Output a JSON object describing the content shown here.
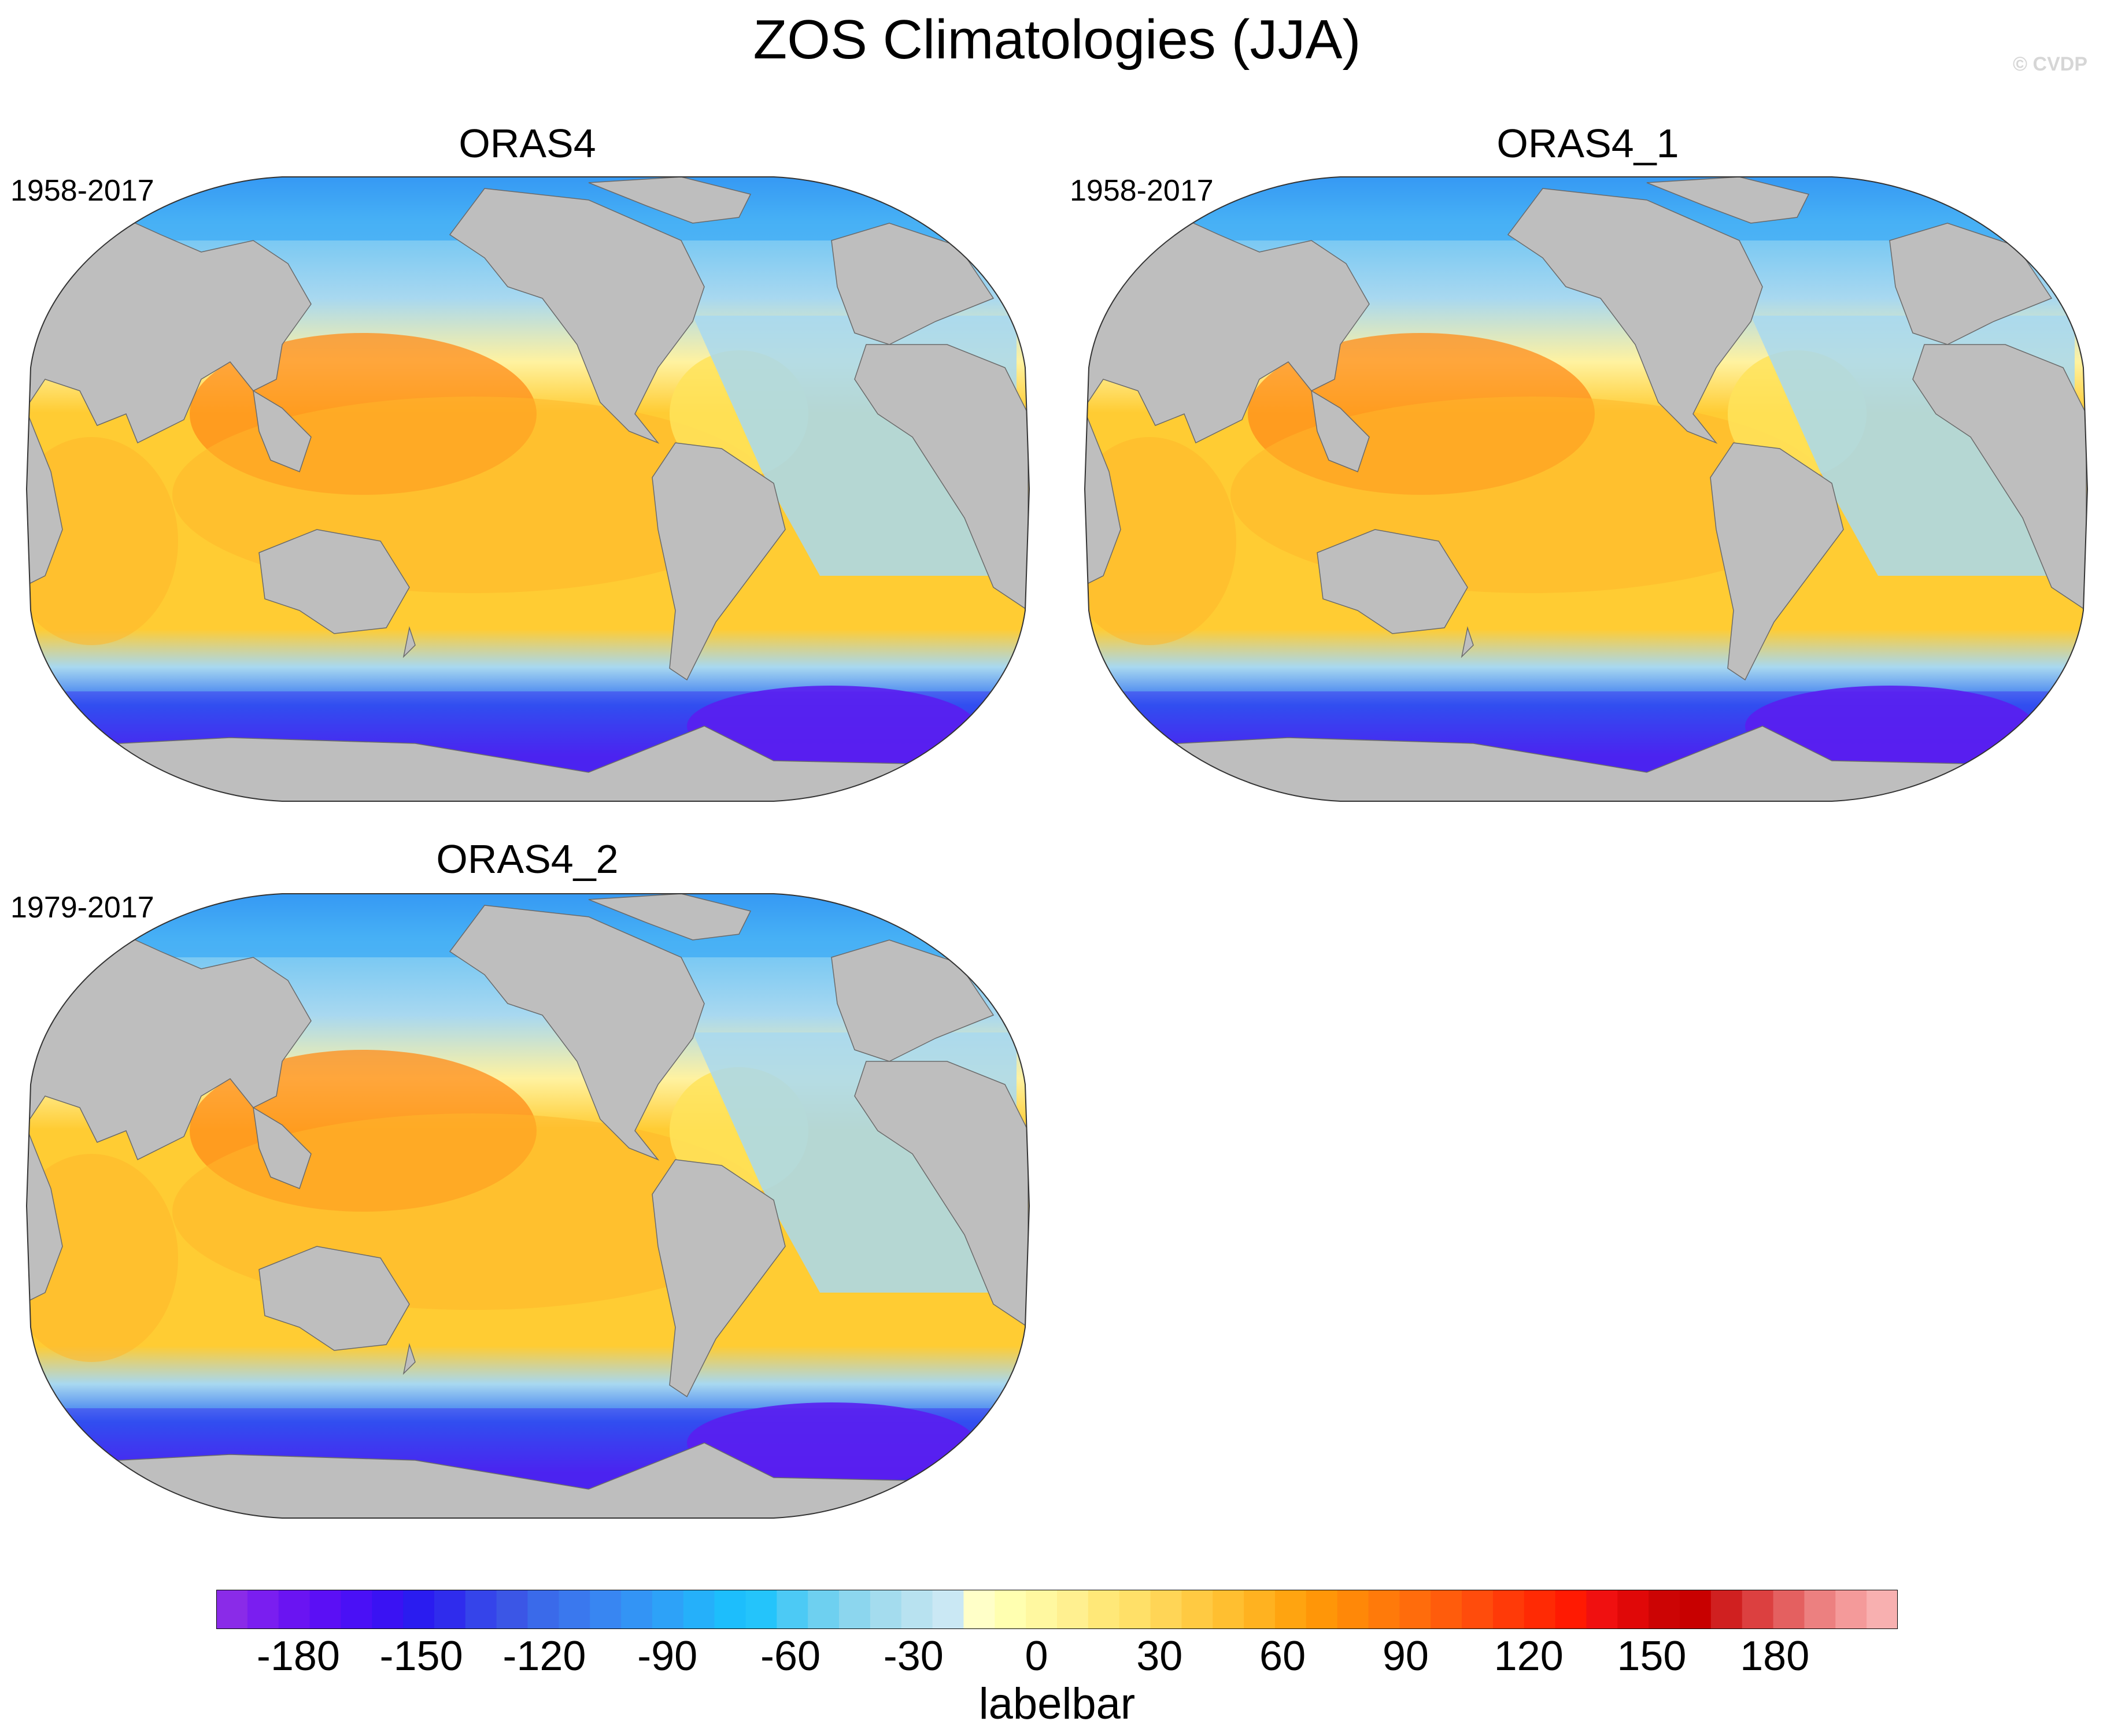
{
  "title": "ZOS Climatologies (JJA)",
  "credit": "© CVDP",
  "panels": [
    {
      "name": "ORAS4",
      "period": "1958-2017"
    },
    {
      "name": "ORAS4_1",
      "period": "1958-2017"
    },
    {
      "name": "ORAS4_2",
      "period": "1979-2017"
    }
  ],
  "colorbar": {
    "label": "labelbar",
    "ticks": [
      "-180",
      "-150",
      "-120",
      "-90",
      "-60",
      "-30",
      "0",
      "30",
      "60",
      "90",
      "120",
      "150",
      "180"
    ],
    "tick_values": [
      -180,
      -150,
      -120,
      -90,
      -60,
      -30,
      0,
      30,
      60,
      90,
      120,
      150,
      180
    ],
    "colors": [
      "#8a2be8",
      "#7a1ef0",
      "#6a14f2",
      "#5b0ff5",
      "#4a10f6",
      "#3a12f3",
      "#2a1cf0",
      "#2f2ced",
      "#3544ea",
      "#3b56e6",
      "#3a6aea",
      "#3a78ee",
      "#3886f2",
      "#3394f5",
      "#2da2f8",
      "#25b0fa",
      "#1dbefc",
      "#24c4fb",
      "#4ccaf5",
      "#6ed0f0",
      "#8cd6ee",
      "#a4dcee",
      "#b8e2f0",
      "#cae8f4",
      "#ffffc8",
      "#ffffb0",
      "#fff8a0",
      "#fff090",
      "#ffe878",
      "#ffe068",
      "#ffd556",
      "#ffca42",
      "#ffbf30",
      "#ffb220",
      "#ffa410",
      "#ff9608",
      "#ff8808",
      "#ff7a0a",
      "#ff6c0c",
      "#ff5c0c",
      "#ff4c0c",
      "#ff3a08",
      "#ff2a04",
      "#ff1a02",
      "#f01010",
      "#e00808",
      "#cc0404",
      "#c80000",
      "#d02020",
      "#dc4040",
      "#e46060",
      "#ec8080",
      "#f49a9a",
      "#f8b0b0"
    ],
    "color_range": [
      -200,
      210
    ]
  },
  "map_legend_colors": {
    "land": "#bebebe",
    "strong_negative": "#5a1ef0",
    "negative": "#2a6cf0",
    "weak_negative": "#a8d8f0",
    "weak_positive": "#fff2a0",
    "positive": "#ffcc33",
    "strong_positive": "#ff8c1a"
  }
}
